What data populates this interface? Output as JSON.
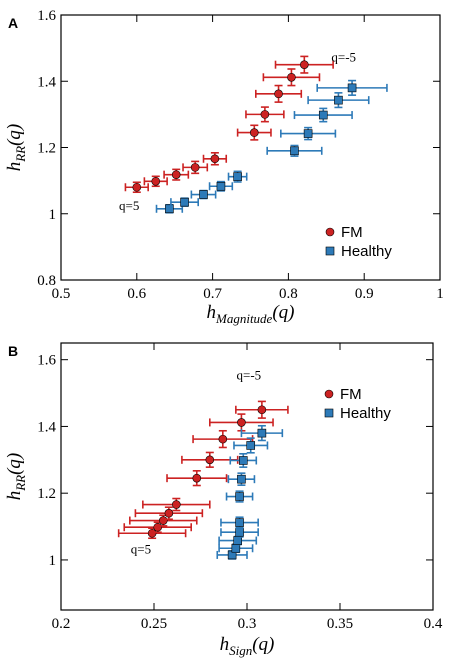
{
  "chart_data": [
    {
      "type": "scatter",
      "panel_label": "A",
      "xlabel": {
        "main": "h",
        "sub": "Magnitude",
        "suffix": "(q)"
      },
      "ylabel": {
        "main": "h",
        "sub": "RR",
        "suffix": "(q)"
      },
      "xlim": [
        0.5,
        1.0
      ],
      "ylim": [
        0.8,
        1.6
      ],
      "xticks": [
        0.5,
        0.6,
        0.7,
        0.8,
        0.9,
        1.0
      ],
      "xtick_labels": [
        "0.5",
        "0.6",
        "0.7",
        "0.8",
        "0.9",
        "1"
      ],
      "yticks": [
        0.8,
        1.0,
        1.2,
        1.4,
        1.6
      ],
      "ytick_labels": [
        "0.8",
        "1",
        "1.2",
        "1.4",
        "1.6"
      ],
      "legend": "bottom-right",
      "grid": false,
      "annotations": [
        {
          "text": "q=5",
          "x": 0.59,
          "y": 1.012
        },
        {
          "text": "q=-5",
          "x": 0.873,
          "y": 1.46
        }
      ],
      "series": [
        {
          "name": "FM",
          "marker": "circle",
          "color": "#cc2222",
          "points": [
            {
              "x": 0.6,
              "y": 1.08,
              "xerr": 0.015,
              "yerr": 0.015
            },
            {
              "x": 0.625,
              "y": 1.098,
              "xerr": 0.015,
              "yerr": 0.015
            },
            {
              "x": 0.652,
              "y": 1.118,
              "xerr": 0.016,
              "yerr": 0.016
            },
            {
              "x": 0.677,
              "y": 1.14,
              "xerr": 0.016,
              "yerr": 0.018
            },
            {
              "x": 0.703,
              "y": 1.166,
              "xerr": 0.015,
              "yerr": 0.018
            },
            {
              "x": 0.755,
              "y": 1.245,
              "xerr": 0.022,
              "yerr": 0.022
            },
            {
              "x": 0.769,
              "y": 1.3,
              "xerr": 0.025,
              "yerr": 0.022
            },
            {
              "x": 0.787,
              "y": 1.362,
              "xerr": 0.03,
              "yerr": 0.025
            },
            {
              "x": 0.804,
              "y": 1.412,
              "xerr": 0.037,
              "yerr": 0.025
            },
            {
              "x": 0.821,
              "y": 1.45,
              "xerr": 0.038,
              "yerr": 0.025
            }
          ]
        },
        {
          "name": "Healthy",
          "marker": "square",
          "color": "#2d7ab8",
          "points": [
            {
              "x": 0.643,
              "y": 1.015,
              "xerr": 0.017,
              "yerr": 0.012
            },
            {
              "x": 0.663,
              "y": 1.035,
              "xerr": 0.018,
              "yerr": 0.012
            },
            {
              "x": 0.688,
              "y": 1.058,
              "xerr": 0.016,
              "yerr": 0.012
            },
            {
              "x": 0.711,
              "y": 1.083,
              "xerr": 0.015,
              "yerr": 0.014
            },
            {
              "x": 0.733,
              "y": 1.112,
              "xerr": 0.012,
              "yerr": 0.016
            },
            {
              "x": 0.808,
              "y": 1.19,
              "xerr": 0.036,
              "yerr": 0.016
            },
            {
              "x": 0.826,
              "y": 1.242,
              "xerr": 0.036,
              "yerr": 0.018
            },
            {
              "x": 0.846,
              "y": 1.298,
              "xerr": 0.038,
              "yerr": 0.02
            },
            {
              "x": 0.866,
              "y": 1.343,
              "xerr": 0.04,
              "yerr": 0.022
            },
            {
              "x": 0.884,
              "y": 1.38,
              "xerr": 0.046,
              "yerr": 0.022
            }
          ]
        }
      ]
    },
    {
      "type": "scatter",
      "panel_label": "B",
      "xlabel": {
        "main": "h",
        "sub": "Sign",
        "suffix": "(q)"
      },
      "ylabel": {
        "main": "h",
        "sub": "RR",
        "suffix": "(q)"
      },
      "xlim": [
        0.2,
        0.4
      ],
      "ylim": [
        0.85,
        1.65
      ],
      "xticks": [
        0.2,
        0.25,
        0.3,
        0.35,
        0.4
      ],
      "xtick_labels": [
        "0.2",
        "0.25",
        "0.3",
        "0.35",
        "0.4"
      ],
      "yticks": [
        1.0,
        1.2,
        1.4,
        1.6
      ],
      "ytick_labels": [
        "1",
        "1.2",
        "1.4",
        "1.6"
      ],
      "legend": "top-right",
      "grid": false,
      "annotations": [
        {
          "text": "q=5",
          "x": 0.243,
          "y": 1.02
        },
        {
          "text": "q=-5",
          "x": 0.301,
          "y": 1.54
        }
      ],
      "series": [
        {
          "name": "FM",
          "marker": "circle",
          "color": "#cc2222",
          "points": [
            {
              "x": 0.249,
              "y": 1.08,
              "xerr": 0.018,
              "yerr": 0.015
            },
            {
              "x": 0.252,
              "y": 1.098,
              "xerr": 0.018,
              "yerr": 0.015
            },
            {
              "x": 0.255,
              "y": 1.118,
              "xerr": 0.018,
              "yerr": 0.016
            },
            {
              "x": 0.258,
              "y": 1.14,
              "xerr": 0.018,
              "yerr": 0.018
            },
            {
              "x": 0.262,
              "y": 1.166,
              "xerr": 0.018,
              "yerr": 0.018
            },
            {
              "x": 0.273,
              "y": 1.245,
              "xerr": 0.016,
              "yerr": 0.022
            },
            {
              "x": 0.28,
              "y": 1.3,
              "xerr": 0.015,
              "yerr": 0.022
            },
            {
              "x": 0.287,
              "y": 1.362,
              "xerr": 0.016,
              "yerr": 0.025
            },
            {
              "x": 0.297,
              "y": 1.412,
              "xerr": 0.017,
              "yerr": 0.025
            },
            {
              "x": 0.308,
              "y": 1.45,
              "xerr": 0.014,
              "yerr": 0.025
            }
          ]
        },
        {
          "name": "Healthy",
          "marker": "square",
          "color": "#2d7ab8",
          "points": [
            {
              "x": 0.292,
              "y": 1.015,
              "xerr": 0.008,
              "yerr": 0.012
            },
            {
              "x": 0.294,
              "y": 1.035,
              "xerr": 0.009,
              "yerr": 0.012
            },
            {
              "x": 0.295,
              "y": 1.058,
              "xerr": 0.01,
              "yerr": 0.012
            },
            {
              "x": 0.296,
              "y": 1.083,
              "xerr": 0.01,
              "yerr": 0.014
            },
            {
              "x": 0.296,
              "y": 1.112,
              "xerr": 0.01,
              "yerr": 0.016
            },
            {
              "x": 0.296,
              "y": 1.19,
              "xerr": 0.007,
              "yerr": 0.016
            },
            {
              "x": 0.297,
              "y": 1.242,
              "xerr": 0.007,
              "yerr": 0.018
            },
            {
              "x": 0.298,
              "y": 1.298,
              "xerr": 0.007,
              "yerr": 0.02
            },
            {
              "x": 0.302,
              "y": 1.343,
              "xerr": 0.009,
              "yerr": 0.022
            },
            {
              "x": 0.308,
              "y": 1.38,
              "xerr": 0.011,
              "yerr": 0.022
            }
          ]
        }
      ]
    }
  ]
}
